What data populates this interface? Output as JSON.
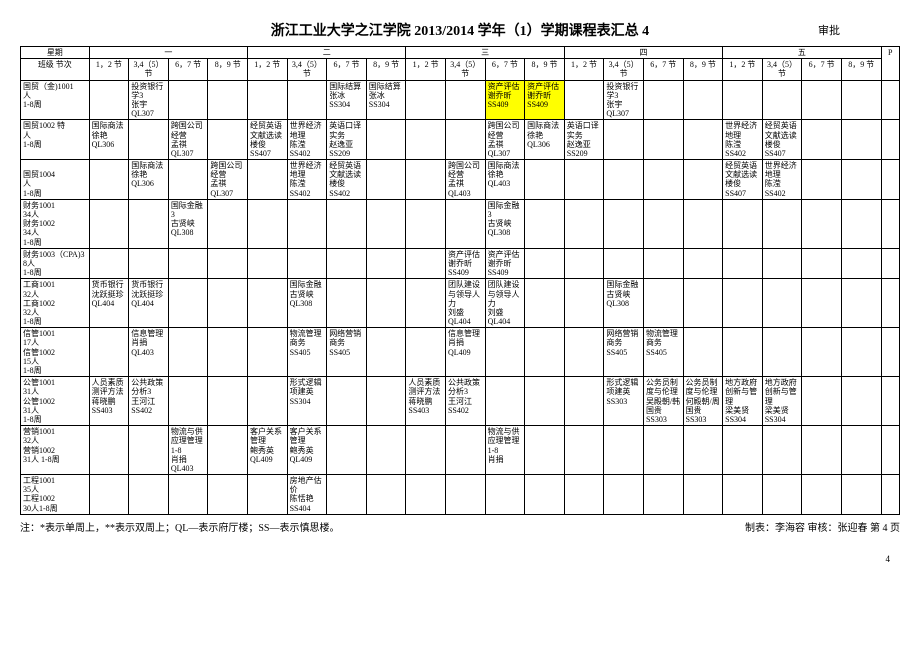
{
  "title": "浙江工业大学之江学院 2013/2014 学年（1）学期课程表汇总 4",
  "approval": "审批",
  "footer_note": "注：*表示单周上，**表示双周上；QL—表示府厅楼；SS—表示慎思楼。",
  "footer_right": "制表：李海容  审核：张迎春  第 4 页",
  "page_number": "4",
  "header": {
    "day_label": "星期",
    "class_period_label": "班级 节次",
    "days": [
      "一",
      "二",
      "三",
      "四",
      "五"
    ],
    "periods": [
      "1，2 节",
      "3,4（5）节",
      "6，7 节",
      "8，9 节"
    ],
    "p": "P"
  },
  "rows": [
    {
      "class": "国贸（金)1001\n人\n1-8周",
      "cells": {
        "d1p2": "投资银行学3\n张宇\nQL307",
        "d2p3": "国际结算\n张冰\nSS304",
        "d2p4": "国际结算\n张冰\nSS304",
        "d3p3": "资产评估\n谢乔昕\nSS409",
        "d3p3_hl": true,
        "d3p4": "资产评估\n谢乔昕\nSS409",
        "d3p4_hl": true,
        "d4p2": "投资银行学3\n张宇\nQL307"
      }
    },
    {
      "class": "国贸1002  特\n人\n1-8周",
      "cells": {
        "d1p1": "国际商法\n徐艳\nQL306",
        "d1p3": "跨国公司经营\n孟祺\nQL307",
        "d2p1": "经贸英语文献选读\n楼俊\nSS407",
        "d2p2": "世界经济地理\n陈滢\nSS402",
        "d2p3": "英语口译实务\n赵逸亚\nSS209",
        "d3p3": "跨国公司经营\n孟祺\nQL307",
        "d3p4": "国际商法\n徐艳\nQL306",
        "d4p1": "英语口译实务\n赵逸亚\nSS209",
        "d5p1": "世界经济地理\n陈滢\nSS402",
        "d5p2": "经贸英语文献选读\n楼俊\nSS407"
      }
    },
    {
      "class": "\n国贸1004\n人\n1-8周",
      "cells": {
        "d1p2": "国际商法\n徐艳\nQL306",
        "d1p4": "跨国公司经营\n孟祺\nQL307",
        "d2p2": "世界经济地理\n陈滢\nSS402",
        "d2p3": "经贸英语文献选读\n楼俊\nSS402",
        "d3p2": "跨国公司经营\n孟祺\nQL403",
        "d3p3": "国际商法\n徐艳\nQL403",
        "d5p1": "经贸英语文献选读\n楼俊\nSS407",
        "d5p2": "世界经济地理\n陈滢\nSS402"
      }
    },
    {
      "class": "财务1001\n34人\n财务1002\n34人\n1-8周",
      "cells": {
        "d1p3": "国际金融3\n古贤峡\nQL308",
        "d3p3": "国际金融3\n古贤峡\nQL308"
      }
    },
    {
      "class": "财务1003（CPA)38人\n1-8周",
      "cells": {
        "d3p2": "资产评估\n谢乔昕\nSS409",
        "d3p3": "资产评估\n谢乔昕\nSS409"
      }
    },
    {
      "class": "工商1001\n32人\n工商1002\n32人\n1-8周",
      "cells": {
        "d1p1": "货币银行\n沈跃挺珍\nQL404",
        "d1p2": "货币银行\n沈跃挺珍\nQL404",
        "d2p2": "国际金融\n古贤峡\nQL308",
        "d3p2": "团队建设与领导人力\n刘盛\nQL404",
        "d3p3": "团队建设与领导人力\n刘盛\nQL404",
        "d4p2": "国际金融\n古贤峡\nQL308"
      }
    },
    {
      "class": "信管1001\n17人\n信管1002\n15人\n1-8周",
      "cells": {
        "d1p2": "信息管理\n肖捐\nQL403",
        "d2p2": "物流管理\n商务\nSS405",
        "d2p3": "网络营销\n商务\nSS405",
        "d3p2": "信息管理\n肖捐\nQL409",
        "d4p2": "网络营销\n商务\nSS405",
        "d4p3": "物流管理\n商务\nSS405"
      }
    },
    {
      "class": "公管1001\n31人\n公管1002\n31人\n1-8周",
      "cells": {
        "d1p1": "人员素质测评方法\n蒋晓鹏\nSS403",
        "d1p2": "公共政策分析3\n王河江\nSS402",
        "d2p2": "形式逻辑\n项建英\nSS304",
        "d3p1": "人员素质测评方法\n蒋晓鹏\nSS403",
        "d3p2": "公共政策分析3\n王河江\nSS402",
        "d4p2": "形式逻辑\n项建英\nSS303",
        "d4p3": "公务员制度与伦理\n吴殿朝/韩国贵\nSS303",
        "d4p4": "公务员制度与伦理 何殿朝/周国贵\nSS303",
        "d5p1": "地方政府创新与管理\n梁美贤\nSS304",
        "d5p2": "地方政府创新与管理\n梁美贤\nSS304"
      }
    },
    {
      "class": "营销1001\n32人\n营销1002\n31人 1-8周",
      "cells": {
        "d1p3": "物流与供应理管理1-8\n肖捐\nQL403",
        "d2p1": "客户关系管理\n鲍秀英\nQL409",
        "d2p2": "客户关系管理\n鲍秀英\nQL409",
        "d3p3": "物流与供应理管理1-8\n肖捐"
      }
    },
    {
      "class": "工程1001\n35人\n工程1002\n30人1-8周",
      "cells": {
        "d2p2": "房地产估价\n陈恬艳\nSS404"
      }
    }
  ]
}
